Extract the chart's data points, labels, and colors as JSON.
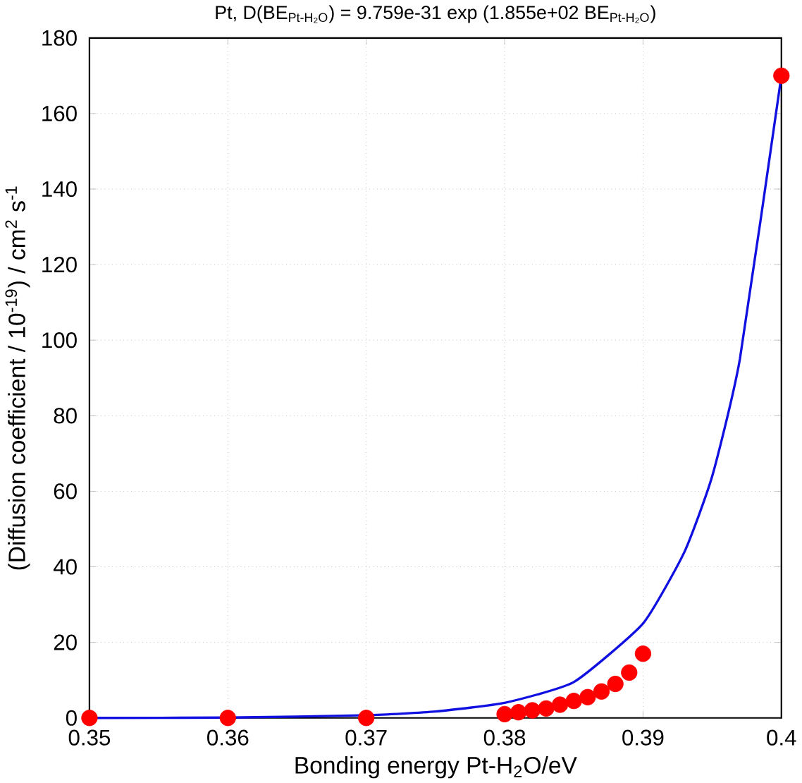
{
  "chart_data": {
    "type": "scatter",
    "title": "Pt, D(BE$_{Pt-H₂O}$) = 9.759e-31 exp (1.855e+02 BE$_{Pt-H₂O}$)",
    "xlabel": "Bonding energy Pt-H$_{2}$O/eV",
    "ylabel": "(Diffusion coefficient / 10$^{-19}$) / cm$^{2}$ s$^{-1}$",
    "xlim": [
      0.35,
      0.4
    ],
    "ylim": [
      0,
      180
    ],
    "xticks": [
      0.35,
      0.36,
      0.37,
      0.38,
      0.39,
      0.4
    ],
    "yticks": [
      0,
      20,
      40,
      60,
      80,
      100,
      120,
      140,
      160,
      180
    ],
    "grid": true,
    "marker": "circle",
    "series": [
      {
        "type": "line",
        "color": "#1010e0",
        "marker": "none",
        "x": [
          0.35,
          0.36,
          0.37,
          0.375,
          0.38,
          0.385,
          0.39,
          0.393,
          0.395,
          0.397,
          0.4
        ],
        "values": [
          0,
          0.1,
          0.7,
          1.7,
          4,
          9.5,
          25,
          44,
          64,
          95,
          170
        ]
      },
      {
        "color": "#ff0000",
        "x": [
          0.35,
          0.36,
          0.37,
          0.38,
          0.381,
          0.382,
          0.383,
          0.384,
          0.385,
          0.386,
          0.387,
          0.388,
          0.389,
          0.39,
          0.4
        ],
        "values": [
          0,
          0,
          0,
          1,
          1.5,
          2,
          2.5,
          3.5,
          4.5,
          5.5,
          7,
          9,
          12,
          17,
          170
        ]
      }
    ]
  }
}
